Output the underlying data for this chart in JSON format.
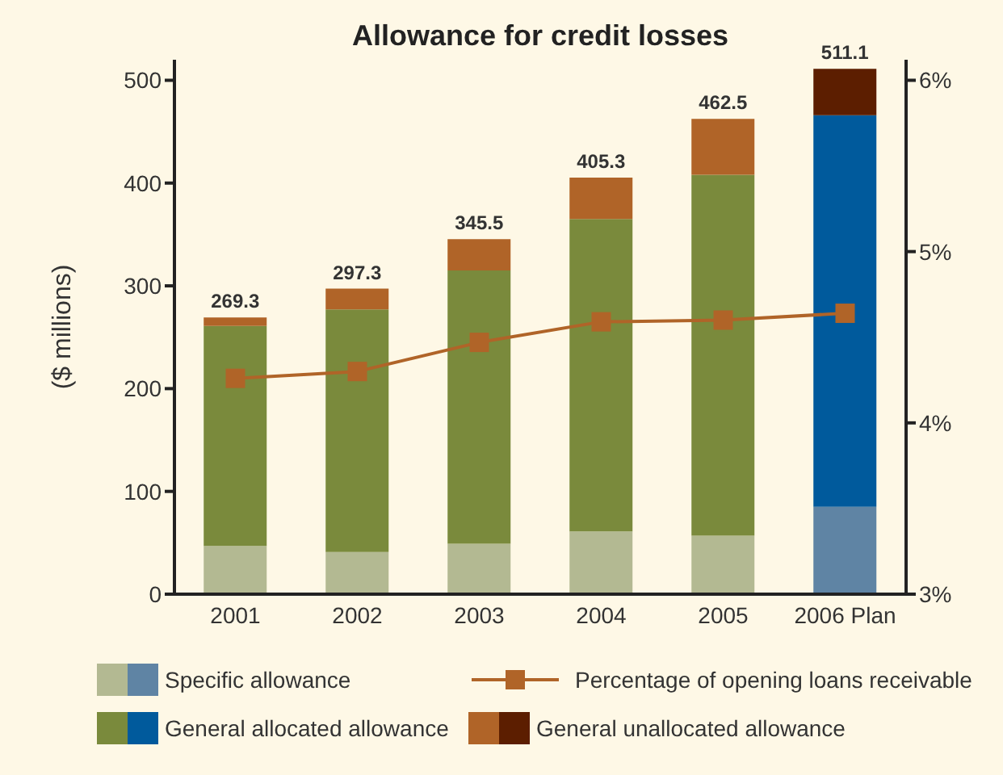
{
  "chart_data": {
    "type": "bar",
    "title": "Allowance for credit losses",
    "ylabel": "($ millions)",
    "categories": [
      "2001",
      "2002",
      "2003",
      "2004",
      "2005",
      "2006 Plan"
    ],
    "stacked": true,
    "series": [
      {
        "name": "Specific allowance",
        "colors": [
          "#b3b992",
          "#b3b992",
          "#b3b992",
          "#b3b992",
          "#b3b992",
          "#5f84a4"
        ],
        "values": [
          47,
          41,
          49,
          61,
          57,
          85
        ]
      },
      {
        "name": "General allocated allowance",
        "colors": [
          "#7a8a3c",
          "#7a8a3c",
          "#7a8a3c",
          "#7a8a3c",
          "#7a8a3c",
          "#005a9c"
        ],
        "values": [
          214,
          236,
          266,
          304,
          351,
          381
        ]
      },
      {
        "name": "Percentage of opening loans receivable",
        "type": "line",
        "axis": "y2",
        "color": "#b06428",
        "marker": "square",
        "values": [
          4.26,
          4.3,
          4.47,
          4.59,
          4.6,
          4.64
        ]
      },
      {
        "name": "General unallocated allowance",
        "colors": [
          "#b06428",
          "#b06428",
          "#b06428",
          "#b06428",
          "#b06428",
          "#5c1e00"
        ],
        "values": [
          8.3,
          20.3,
          30.5,
          40.3,
          54.5,
          45.1
        ]
      }
    ],
    "totals": [
      "269.3",
      "297.3",
      "345.5",
      "405.3",
      "462.5",
      "511.1"
    ],
    "ylim": [
      0,
      520
    ],
    "yticks": [
      0,
      100,
      200,
      300,
      400,
      500
    ],
    "y2lim": [
      3,
      6.12
    ],
    "y2ticks": [
      {
        "value": 3,
        "label": "3%"
      },
      {
        "value": 4,
        "label": "4%"
      },
      {
        "value": 5,
        "label": "5%"
      },
      {
        "value": 6,
        "label": "6%"
      }
    ],
    "grid": false,
    "legend": "bottom"
  }
}
